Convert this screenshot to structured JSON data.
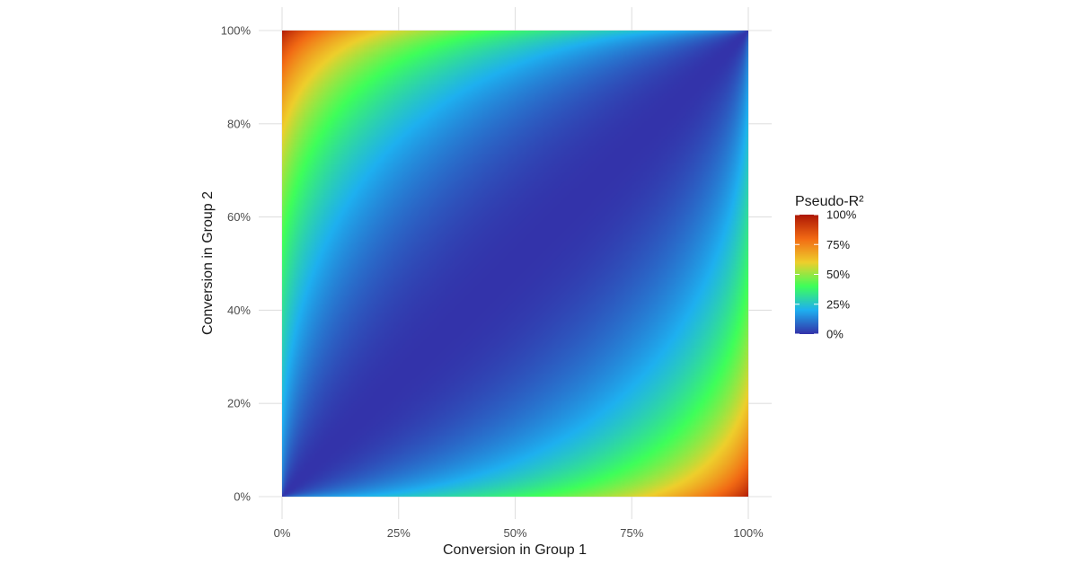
{
  "chart_data": {
    "type": "heatmap",
    "title": "",
    "xlabel": "Conversion in Group 1",
    "ylabel": "Conversion in Group 2",
    "xlim": [
      0,
      1
    ],
    "ylim": [
      0,
      1
    ],
    "x_ticks": [
      0,
      0.25,
      0.5,
      0.75,
      1
    ],
    "x_tick_labels": [
      "0%",
      "25%",
      "50%",
      "75%",
      "100%"
    ],
    "y_ticks": [
      0,
      0.2,
      0.4,
      0.6,
      0.8,
      1
    ],
    "y_tick_labels": [
      "0%",
      "20%",
      "40%",
      "60%",
      "80%",
      "100%"
    ],
    "grid": true,
    "colormap": "turbo",
    "value_description": "pseudo-R² values over a grid of (group 1, group 2) conversion rates; near 0% along the diagonal, rising toward 100% at the (0%, 100%) and (100%, 0%) corners",
    "sample_values": [
      {
        "x": 0.5,
        "y": 0.5,
        "value": 0.0
      },
      {
        "x": 0.0,
        "y": 1.0,
        "value": 1.0
      },
      {
        "x": 1.0,
        "y": 0.0,
        "value": 1.0
      },
      {
        "x": 0.0,
        "y": 0.5,
        "value": 0.45
      },
      {
        "x": 0.5,
        "y": 0.0,
        "value": 0.45
      },
      {
        "x": 0.25,
        "y": 0.75,
        "value": 0.19
      }
    ],
    "legend": {
      "title": "Pseudo-R²",
      "position": "right",
      "min": 0,
      "max": 1,
      "breaks": [
        0,
        0.25,
        0.5,
        0.75,
        1
      ],
      "break_labels": [
        "0%",
        "25%",
        "50%",
        "75%",
        "100%"
      ],
      "colors": [
        "#3333AA",
        "#1EB0F0",
        "#3EFF5A",
        "#EECF2C",
        "#F26A14",
        "#AE1805"
      ]
    }
  }
}
